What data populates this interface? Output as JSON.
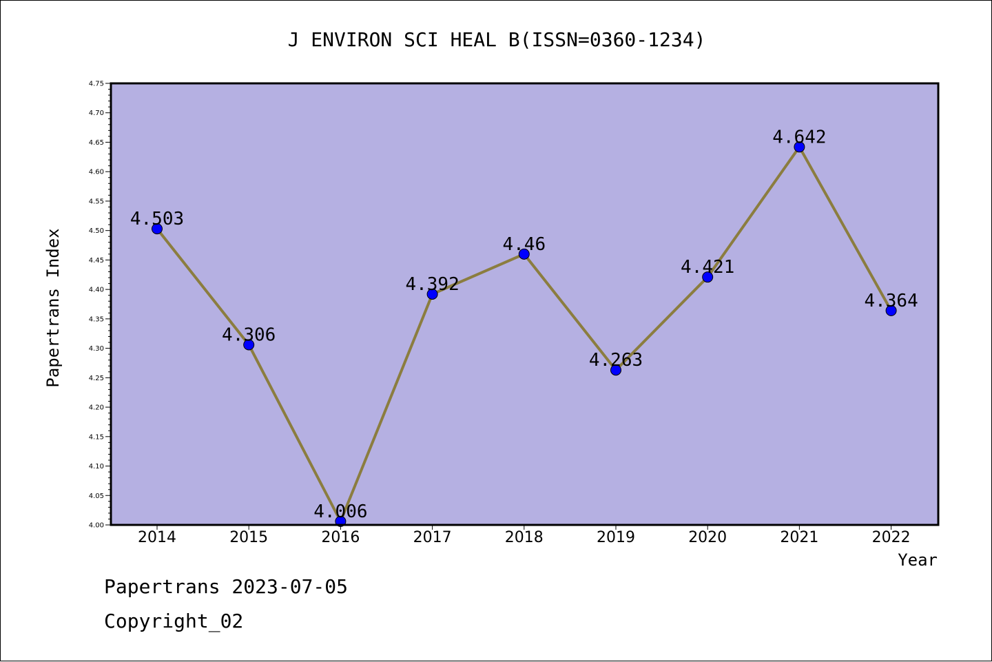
{
  "chart_data": {
    "type": "line",
    "title": "J ENVIRON SCI HEAL B(ISSN=0360-1234)",
    "xlabel": "Year",
    "ylabel": "Papertrans Index",
    "categories": [
      "2014",
      "2015",
      "2016",
      "2017",
      "2018",
      "2019",
      "2020",
      "2021",
      "2022"
    ],
    "series": [
      {
        "values": [
          4.503,
          4.306,
          4.006,
          4.392,
          4.46,
          4.263,
          4.421,
          4.642,
          4.364
        ],
        "labels": [
          "4.503",
          "4.306",
          "4.006",
          "4.392",
          "4.46",
          "4.263",
          "4.421",
          "4.642",
          "4.364"
        ]
      }
    ],
    "ylim": [
      4.0,
      4.75
    ],
    "yticks": [
      "4.00",
      "4.05",
      "4.10",
      "4.15",
      "4.20",
      "4.25",
      "4.30",
      "4.35",
      "4.40",
      "4.45",
      "4.50",
      "4.55",
      "4.60",
      "4.65",
      "4.70",
      "4.75"
    ],
    "grid": false,
    "legend": "none",
    "colors": {
      "plot_background": "#b5b0e2",
      "line": "#8b7d3f",
      "marker": "#0000ff"
    }
  },
  "footer": {
    "date_line": "Papertrans 2023-07-05",
    "copyright": "Copyright_02"
  }
}
